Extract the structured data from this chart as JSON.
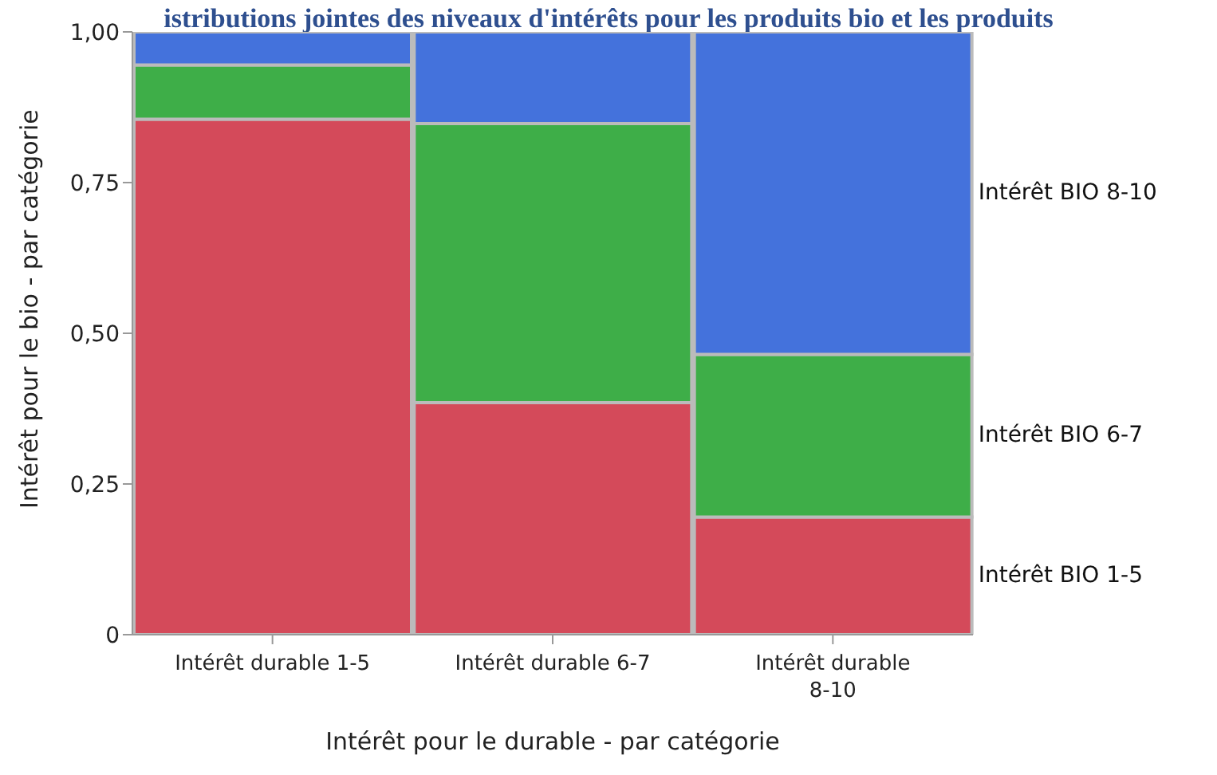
{
  "chart_data": {
    "type": "bar",
    "stacked": true,
    "title": "istributions jointes des niveaux d'intérêts pour les produits bio et les produits",
    "xlabel": "Intérêt pour le durable - par catégorie",
    "ylabel": "Intérêt pour le bio - par catégorie",
    "categories": [
      "Intérêt durable 1-5",
      "Intérêt durable 6-7",
      "Intérêt durable 8-10"
    ],
    "series": [
      {
        "name": "Intérêt BIO 1-5",
        "color": "#d44a5a",
        "values": [
          0.855,
          0.385,
          0.195
        ]
      },
      {
        "name": "Intérêt BIO 6-7",
        "color": "#3eae48",
        "values": [
          0.09,
          0.463,
          0.27
        ]
      },
      {
        "name": "Intérêt BIO 8-10",
        "color": "#4472dc",
        "values": [
          0.055,
          0.152,
          0.535
        ]
      }
    ],
    "ylim": [
      0,
      1
    ],
    "yticks": [
      0,
      {
        "value": 0.25,
        "label": "0,25"
      },
      {
        "value": 0.5,
        "label": "0,50"
      },
      {
        "value": 0.75,
        "label": "0,75"
      },
      {
        "value": 1,
        "label": "1,00"
      }
    ],
    "grid": false,
    "legend": false
  }
}
